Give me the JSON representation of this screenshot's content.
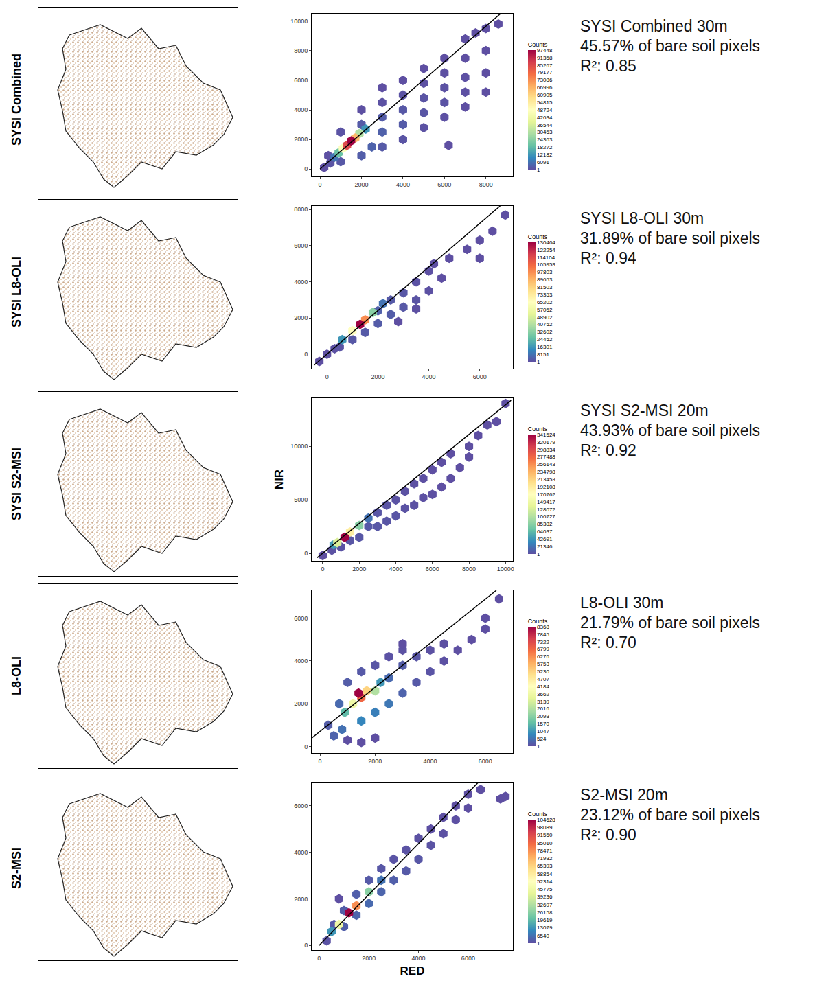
{
  "chart_data": [
    {
      "type": "scatter",
      "map_label": "SYSI Combined",
      "annotations": [
        "SYSI Combined 30m",
        "45.57% of bare soil pixels",
        "R²: 0.85"
      ],
      "marker": "hexagon",
      "xlim": [
        -400,
        9300
      ],
      "ylim": [
        -500,
        10500
      ],
      "xticks": [
        0,
        2000,
        4000,
        6000,
        8000
      ],
      "yticks": [
        0,
        2000,
        4000,
        6000,
        8000,
        10000
      ],
      "x": [
        200,
        500,
        400,
        1000,
        1000,
        2000,
        2000,
        2000,
        2500,
        3000,
        3000,
        3000,
        3000,
        3000,
        4000,
        4000,
        4000,
        4000,
        4000,
        5000,
        5000,
        5000,
        5000,
        5000,
        6000,
        6000,
        6000,
        6000,
        6000,
        7000,
        7000,
        7000,
        7000,
        7000,
        8000,
        8000,
        8000,
        8000,
        6200,
        8600,
        7500,
        700,
        2200,
        900,
        1900,
        1100,
        1700,
        1300,
        1500
      ],
      "y": [
        100,
        400,
        900,
        500,
        2500,
        900,
        3000,
        4000,
        1500,
        1500,
        2500,
        3500,
        4500,
        5500,
        2000,
        3000,
        4000,
        5000,
        6000,
        2800,
        3800,
        4800,
        5800,
        6800,
        3500,
        4500,
        5500,
        6500,
        7500,
        4200,
        5200,
        6200,
        7500,
        8800,
        5200,
        6500,
        8000,
        9500,
        1600,
        9800,
        9200,
        800,
        2700,
        1100,
        2400,
        1400,
        2100,
        1600,
        1900
      ],
      "counts": [
        40,
        900,
        200,
        1500,
        600,
        2500,
        2000,
        150,
        3500,
        1800,
        3000,
        2200,
        500,
        30,
        900,
        2000,
        1500,
        600,
        40,
        500,
        1200,
        900,
        300,
        20,
        300,
        700,
        500,
        150,
        10,
        80,
        250,
        200,
        40,
        3,
        5,
        30,
        15,
        2,
        1,
        1,
        1,
        6091,
        12000,
        20000,
        30000,
        48000,
        66000,
        85000,
        97448
      ],
      "fit_line": {
        "x": [
          0,
          8700
        ],
        "y": [
          0,
          10500
        ]
      },
      "colorbar": {
        "title": "Counts",
        "range": [
          1,
          97448
        ],
        "ticks": [
          97448,
          91358,
          85267,
          79177,
          73086,
          66996,
          60905,
          54815,
          48724,
          42634,
          36544,
          30453,
          24363,
          18272,
          12182,
          6091,
          1
        ]
      }
    },
    {
      "type": "scatter",
      "map_label": "SYSI L8-OLI",
      "annotations": [
        "SYSI L8-OLI 30m",
        "31.89% of bare soil pixels",
        "R²: 0.94"
      ],
      "marker": "hexagon",
      "xlim": [
        -600,
        7300
      ],
      "ylim": [
        -800,
        8200
      ],
      "xticks": [
        0,
        2000,
        4000,
        6000
      ],
      "yticks": [
        0,
        2000,
        4000,
        6000,
        8000
      ],
      "x": [
        0,
        300,
        500,
        1000,
        1500,
        2000,
        2000,
        2500,
        2500,
        3000,
        3000,
        3500,
        3500,
        4000,
        4000,
        4200,
        4500,
        3500,
        2800,
        4800,
        5500,
        6000,
        6500,
        7000,
        6000,
        -300,
        2200,
        600,
        1800,
        1000,
        1500,
        1300
      ],
      "y": [
        0,
        300,
        400,
        800,
        1200,
        1700,
        2400,
        2200,
        3000,
        2600,
        3400,
        3000,
        4000,
        3500,
        4600,
        5000,
        4200,
        2500,
        1800,
        5300,
        5800,
        5300,
        6800,
        7700,
        6300,
        -400,
        2800,
        800,
        2300,
        1300,
        1900,
        1650
      ],
      "counts": [
        200,
        500,
        1200,
        2000,
        2500,
        3000,
        4000,
        3000,
        2500,
        2000,
        1800,
        1200,
        800,
        500,
        300,
        60,
        80,
        200,
        50,
        10,
        3,
        2,
        1,
        1,
        1,
        2,
        8151,
        16301,
        32602,
        65202,
        97803,
        130404
      ],
      "fit_line": {
        "x": [
          -500,
          6800
        ],
        "y": [
          -600,
          8200
        ]
      },
      "colorbar": {
        "title": "Counts",
        "range": [
          1,
          130404
        ],
        "ticks": [
          130404,
          122254,
          114104,
          105953,
          97803,
          89653,
          81503,
          73353,
          65202,
          57052,
          48902,
          40752,
          32602,
          24452,
          16301,
          8151,
          1
        ]
      }
    },
    {
      "type": "scatter",
      "map_label": "SYSI S2-MSI",
      "annotations": [
        "SYSI S2-MSI 20m",
        "43.93% of bare soil pixels",
        "R²: 0.92"
      ],
      "marker": "hexagon",
      "y_title": "NIR",
      "xlim": [
        -600,
        10400
      ],
      "ylim": [
        -700,
        14500
      ],
      "xticks": [
        0,
        2000,
        4000,
        6000,
        8000,
        10000
      ],
      "yticks": [
        0,
        5000,
        10000
      ],
      "x": [
        0,
        500,
        1000,
        1500,
        2000,
        2500,
        3000,
        3000,
        3500,
        3500,
        4000,
        4000,
        4500,
        4500,
        5000,
        5000,
        5500,
        5500,
        6000,
        6000,
        6500,
        6500,
        7000,
        7000,
        7500,
        8000,
        8000,
        8500,
        9000,
        9500,
        10000,
        2500,
        600,
        2000,
        800,
        1500,
        1200
      ],
      "y": [
        -200,
        300,
        600,
        1200,
        1500,
        2500,
        2500,
        3800,
        3000,
        4500,
        3500,
        5000,
        4200,
        5800,
        4500,
        6500,
        5200,
        7000,
        5500,
        7800,
        6200,
        8500,
        7000,
        9300,
        8000,
        10000,
        9000,
        11000,
        12000,
        12300,
        14000,
        3300,
        800,
        2600,
        1000,
        2000,
        1500
      ],
      "counts": [
        300,
        1500,
        2500,
        4000,
        5000,
        6000,
        5000,
        4000,
        4000,
        3000,
        3500,
        2500,
        2500,
        1500,
        1800,
        1000,
        900,
        400,
        500,
        200,
        200,
        60,
        50,
        20,
        10,
        5,
        4,
        2,
        2,
        1,
        1,
        21000,
        45000,
        85000,
        130000,
        190000,
        341524
      ],
      "fit_line": {
        "x": [
          -300,
          10300
        ],
        "y": [
          -400,
          14300
        ]
      },
      "colorbar": {
        "title": "Counts",
        "range": [
          1,
          341524
        ],
        "ticks": [
          341524,
          320179,
          298834,
          277488,
          256143,
          234798,
          213453,
          192108,
          170762,
          149417,
          128072,
          106727,
          85382,
          64037,
          42691,
          21346,
          1
        ]
      }
    },
    {
      "type": "scatter",
      "map_label": "L8-OLI",
      "annotations": [
        "L8-OLI 30m",
        "21.79% of bare soil pixels",
        "R²: 0.70"
      ],
      "marker": "hexagon",
      "xlim": [
        -300,
        7000
      ],
      "ylim": [
        -300,
        7300
      ],
      "xticks": [
        0,
        2000,
        4000,
        6000
      ],
      "yticks": [
        0,
        2000,
        4000,
        6000
      ],
      "x": [
        500,
        300,
        800,
        700,
        1000,
        1500,
        2000,
        2500,
        1500,
        2000,
        2500,
        2500,
        3000,
        3000,
        3000,
        3500,
        3500,
        4000,
        4000,
        4500,
        4500,
        5000,
        5500,
        6000,
        6000,
        6500,
        1500,
        2000,
        1000,
        3000,
        2200,
        900,
        2000,
        1200,
        1700,
        1500,
        1400
      ],
      "y": [
        500,
        1000,
        800,
        2000,
        3000,
        3500,
        3800,
        4200,
        1200,
        1600,
        2000,
        3200,
        2500,
        3800,
        4500,
        3000,
        4200,
        3500,
        4500,
        4000,
        4800,
        4500,
        5000,
        5500,
        6000,
        6900,
        200,
        400,
        300,
        4800,
        3000,
        1600,
        2600,
        2000,
        2600,
        2300,
        2500
      ],
      "counts": [
        300,
        200,
        500,
        400,
        200,
        150,
        100,
        50,
        800,
        700,
        600,
        400,
        300,
        200,
        40,
        150,
        100,
        80,
        40,
        30,
        15,
        10,
        5,
        2,
        1,
        1,
        2,
        1,
        1,
        3,
        1047,
        1570,
        2616,
        3662,
        5230,
        6799,
        8368
      ],
      "fit_line": {
        "x": [
          -300,
          6400
        ],
        "y": [
          400,
          7300
        ]
      },
      "colorbar": {
        "title": "Counts",
        "range": [
          1,
          8368
        ],
        "ticks": [
          8368,
          7845,
          7322,
          6799,
          6276,
          5753,
          5230,
          4707,
          4184,
          3662,
          3139,
          2616,
          2093,
          1570,
          1047,
          524,
          1
        ]
      }
    },
    {
      "type": "scatter",
      "map_label": "S2-MSI",
      "annotations": [
        "S2-MSI 20m",
        "23.12% of bare soil pixels",
        "R²: 0.90"
      ],
      "marker": "hexagon",
      "x_title": "RED",
      "xlim": [
        -300,
        7800
      ],
      "ylim": [
        -200,
        7000
      ],
      "xticks": [
        0,
        2000,
        4000,
        6000
      ],
      "yticks": [
        0,
        2000,
        4000,
        6000
      ],
      "x": [
        300,
        600,
        1000,
        1000,
        1500,
        1500,
        2000,
        2000,
        2500,
        2500,
        3000,
        3000,
        3500,
        3500,
        4000,
        4000,
        4500,
        4500,
        5000,
        5000,
        5500,
        5500,
        6000,
        6000,
        6500,
        7300,
        7500,
        800,
        2500,
        500,
        2000,
        800,
        1500,
        1200
      ],
      "y": [
        200,
        900,
        800,
        1500,
        1300,
        2200,
        1800,
        2800,
        2300,
        3300,
        2800,
        3700,
        3200,
        4100,
        3700,
        4600,
        4300,
        5000,
        4800,
        5500,
        5400,
        6000,
        5900,
        6500,
        6700,
        6300,
        6400,
        2000,
        2800,
        600,
        2300,
        900,
        1700,
        1400
      ],
      "counts": [
        800,
        2000,
        3000,
        2500,
        4000,
        3000,
        5000,
        2000,
        4000,
        1500,
        3000,
        1000,
        2000,
        800,
        1500,
        500,
        800,
        200,
        400,
        100,
        200,
        50,
        60,
        20,
        5,
        1,
        1,
        5,
        6540,
        13079,
        26158,
        45775,
        78471,
        104628
      ],
      "fit_line": {
        "x": [
          0,
          6400
        ],
        "y": [
          0,
          7000
        ]
      },
      "colorbar": {
        "title": "Counts",
        "range": [
          1,
          104628
        ],
        "ticks": [
          104628,
          98089,
          91550,
          85010,
          78471,
          71932,
          65393,
          58854,
          52314,
          45775,
          39236,
          32697,
          26158,
          19619,
          13079,
          6540,
          1
        ]
      }
    }
  ]
}
